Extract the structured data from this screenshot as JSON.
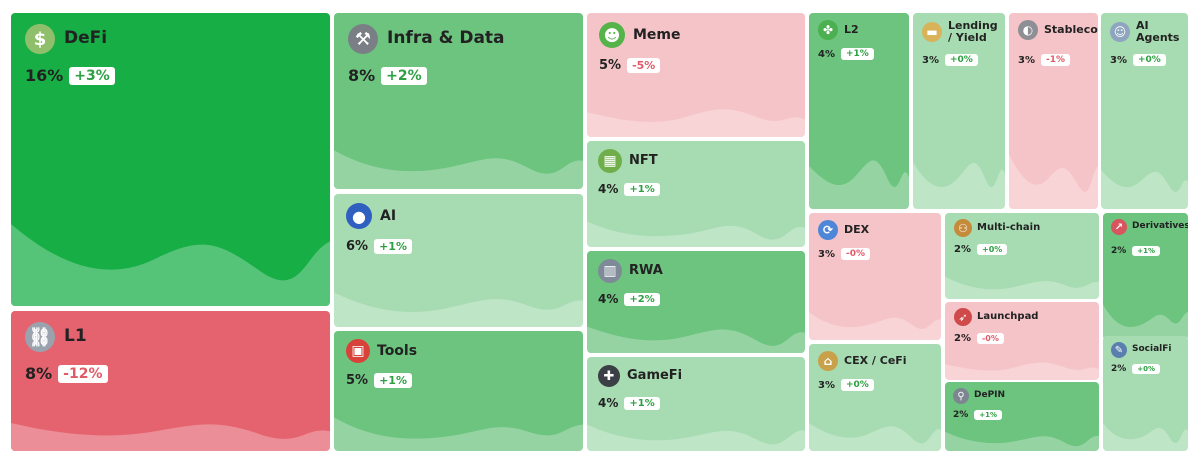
{
  "chart_data": {
    "type": "treemap",
    "title": "",
    "colors": {
      "positive_strong": "#16ae45",
      "positive_mid": "#6cc47f",
      "positive_light": "#a7dcb2",
      "negative_strong": "#e5636f",
      "negative_light": "#f5c4c8"
    },
    "items": [
      {
        "name": "DeFi",
        "share": "16%",
        "change": "+3%",
        "share_value": 16,
        "change_value": 3,
        "icon": "money-bag-icon"
      },
      {
        "name": "L1",
        "share": "8%",
        "change": "-12%",
        "share_value": 8,
        "change_value": -12,
        "icon": "chain-link-icon"
      },
      {
        "name": "Infra & Data",
        "share": "8%",
        "change": "+2%",
        "share_value": 8,
        "change_value": 2,
        "icon": "tools-icon"
      },
      {
        "name": "AI",
        "share": "6%",
        "change": "+1%",
        "share_value": 6,
        "change_value": 1,
        "icon": "orb-icon"
      },
      {
        "name": "Tools",
        "share": "5%",
        "change": "+1%",
        "share_value": 5,
        "change_value": 1,
        "icon": "toolbox-icon"
      },
      {
        "name": "Meme",
        "share": "5%",
        "change": "-5%",
        "share_value": 5,
        "change_value": -5,
        "icon": "frog-icon"
      },
      {
        "name": "NFT",
        "share": "4%",
        "change": "+1%",
        "share_value": 4,
        "change_value": 1,
        "icon": "picture-icon"
      },
      {
        "name": "RWA",
        "share": "4%",
        "change": "+2%",
        "share_value": 4,
        "change_value": 2,
        "icon": "building-icon"
      },
      {
        "name": "GameFi",
        "share": "4%",
        "change": "+1%",
        "share_value": 4,
        "change_value": 1,
        "icon": "gamepad-icon"
      },
      {
        "name": "L2",
        "share": "4%",
        "change": "+1%",
        "share_value": 4,
        "change_value": 1,
        "icon": "puzzle-icon"
      },
      {
        "name": "Lending / Yield",
        "share": "3%",
        "change": "+0%",
        "share_value": 3,
        "change_value": 0,
        "icon": "card-icon"
      },
      {
        "name": "Stablecoin",
        "share": "3%",
        "change": "-1%",
        "share_value": 3,
        "change_value": -1,
        "icon": "coin-icon"
      },
      {
        "name": "AI Agents",
        "share": "3%",
        "change": "+0%",
        "share_value": 3,
        "change_value": 0,
        "icon": "robot-icon"
      },
      {
        "name": "DEX",
        "share": "3%",
        "change": "-0%",
        "share_value": 3,
        "change_value": -0.4,
        "icon": "swap-icon"
      },
      {
        "name": "Multi-chain",
        "share": "2%",
        "change": "+0%",
        "share_value": 2,
        "change_value": 0,
        "icon": "people-icon"
      },
      {
        "name": "Derivatives",
        "share": "2%",
        "change": "+1%",
        "share_value": 2,
        "change_value": 1,
        "icon": "trend-icon"
      },
      {
        "name": "Launchpad",
        "share": "2%",
        "change": "-0%",
        "share_value": 2,
        "change_value": -0.4,
        "icon": "rocket-icon"
      },
      {
        "name": "SocialFi",
        "share": "2%",
        "change": "+0%",
        "share_value": 2,
        "change_value": 0,
        "icon": "speech-icon"
      },
      {
        "name": "CEX / CeFi",
        "share": "3%",
        "change": "+0%",
        "share_value": 3,
        "change_value": 0,
        "icon": "bank-icon"
      },
      {
        "name": "DePIN",
        "share": "2%",
        "change": "+1%",
        "share_value": 2,
        "change_value": 1,
        "icon": "satellite-icon"
      }
    ]
  }
}
